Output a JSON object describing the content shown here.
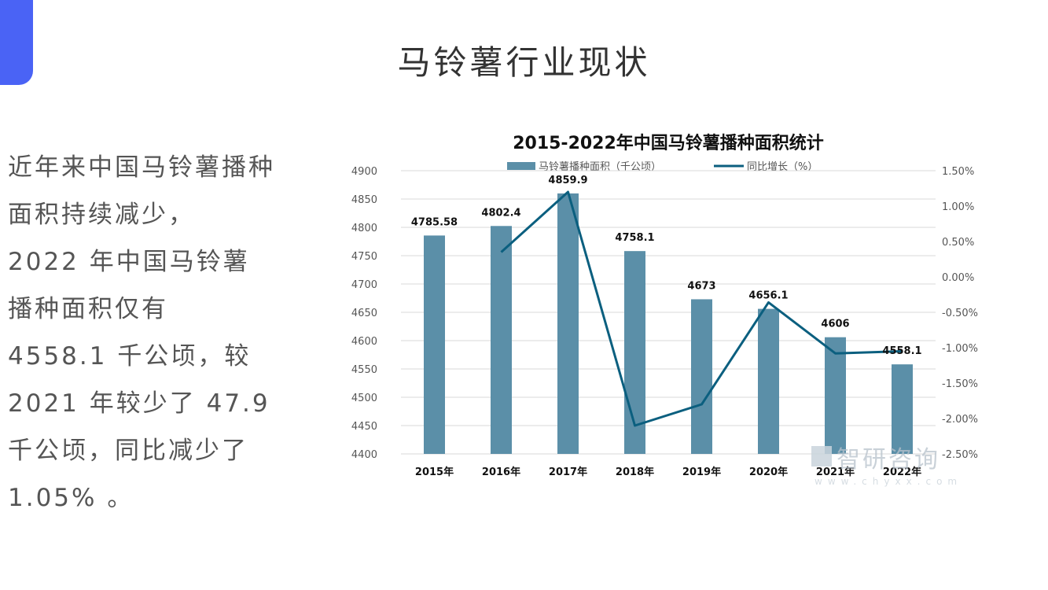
{
  "page": {
    "title": "马铃薯行业现状",
    "summary": "近年来中国马铃薯播种面积持续减少， 2022 年中国马铃薯播种面积仅有 4558.1 千公顷，较 2021 年较少了 47.9 千公顷，同比减少了 1.05% 。"
  },
  "watermark": {
    "brand": "智研咨询",
    "url": "www.chyxx.com"
  },
  "colors": {
    "accent": "#4a63f5",
    "bar": "#5b8fa8",
    "line": "#0b5f7f"
  },
  "chart_data": {
    "type": "bar",
    "title": "2015-2022年中国马铃薯播种面积统计",
    "categories": [
      "2015年",
      "2016年",
      "2017年",
      "2018年",
      "2019年",
      "2020年",
      "2021年",
      "2022年"
    ],
    "series": [
      {
        "name": "马铃薯播种面积（千公顷）",
        "type": "bar",
        "axis": "left",
        "values": [
          4785.58,
          4802.4,
          4859.9,
          4758.1,
          4673,
          4656.1,
          4606,
          4558.1
        ],
        "labels": [
          "4785.58",
          "4802.4",
          "4859.9",
          "4758.1",
          "4673",
          "4656.1",
          "4606",
          "4558.1"
        ]
      },
      {
        "name": "同比增长（%）",
        "type": "line",
        "axis": "right",
        "values": [
          null,
          0.35,
          1.2,
          -2.1,
          -1.8,
          -0.36,
          -1.08,
          -1.05
        ]
      }
    ],
    "ylim_left": [
      4400,
      4900
    ],
    "yticks_left": [
      "4400",
      "4450",
      "4500",
      "4550",
      "4600",
      "4650",
      "4700",
      "4750",
      "4800",
      "4850",
      "4900"
    ],
    "ylim_right": [
      -2.5,
      1.5
    ],
    "yticks_right": [
      "-2.50%",
      "-2.00%",
      "-1.50%",
      "-1.00%",
      "-0.50%",
      "0.00%",
      "0.50%",
      "1.00%",
      "1.50%"
    ],
    "grid": true,
    "legend": "top"
  }
}
